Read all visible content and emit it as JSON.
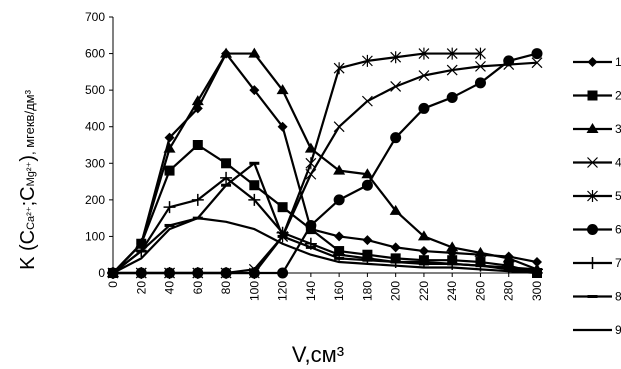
{
  "chart_data": {
    "type": "line",
    "ylabel": {
      "prefix": "K (C",
      "ca_sub": "Ca²⁺",
      "separator": ";C",
      "mg_sub": "Mg²⁺",
      "close": ")",
      "unit": ", мгекв/дм³"
    },
    "xlabel": "V,см³",
    "ylim": [
      0,
      700
    ],
    "yticks": [
      "0",
      "100",
      "200",
      "300",
      "400",
      "500",
      "600",
      "700"
    ],
    "xlim": [
      0,
      300
    ],
    "xticks": [
      "0",
      "20",
      "40",
      "60",
      "80",
      "100",
      "120",
      "140",
      "160",
      "180",
      "200",
      "220",
      "240",
      "260",
      "280",
      "300"
    ],
    "x": [
      0,
      20,
      40,
      60,
      80,
      100,
      120,
      140,
      160,
      180,
      200,
      220,
      240,
      260,
      280,
      300
    ],
    "legend_position": "right",
    "series": [
      {
        "name": "1",
        "marker": "diamond",
        "values": [
          0,
          80,
          370,
          450,
          600,
          500,
          400,
          120,
          100,
          90,
          70,
          60,
          55,
          50,
          45,
          30
        ]
      },
      {
        "name": "2",
        "marker": "square",
        "values": [
          0,
          80,
          280,
          350,
          300,
          240,
          180,
          120,
          60,
          50,
          40,
          35,
          35,
          30,
          20,
          0
        ]
      },
      {
        "name": "3",
        "marker": "triangle",
        "values": [
          0,
          80,
          340,
          470,
          600,
          600,
          500,
          340,
          280,
          270,
          170,
          100,
          70,
          55,
          40,
          10
        ]
      },
      {
        "name": "4",
        "marker": "x",
        "values": [
          0,
          0,
          0,
          0,
          0,
          10,
          100,
          270,
          400,
          470,
          510,
          540,
          555,
          565,
          570,
          575
        ]
      },
      {
        "name": "5",
        "marker": "asterisk",
        "values": [
          0,
          0,
          0,
          0,
          0,
          0,
          100,
          300,
          560,
          580,
          590,
          600,
          600,
          600,
          null,
          null
        ]
      },
      {
        "name": "6",
        "marker": "circle",
        "values": [
          0,
          0,
          0,
          0,
          0,
          0,
          0,
          130,
          200,
          240,
          370,
          450,
          480,
          520,
          580,
          600
        ]
      },
      {
        "name": "7",
        "marker": "plus",
        "values": [
          0,
          60,
          180,
          200,
          260,
          200,
          110,
          80,
          50,
          40,
          30,
          30,
          25,
          20,
          15,
          10
        ]
      },
      {
        "name": "8",
        "marker": "dash",
        "values": [
          0,
          60,
          130,
          150,
          240,
          300,
          100,
          70,
          40,
          35,
          30,
          25,
          25,
          20,
          10,
          5
        ]
      },
      {
        "name": "9",
        "marker": "none",
        "values": [
          0,
          40,
          120,
          150,
          140,
          120,
          80,
          50,
          30,
          25,
          20,
          15,
          15,
          10,
          5,
          0
        ]
      }
    ]
  }
}
